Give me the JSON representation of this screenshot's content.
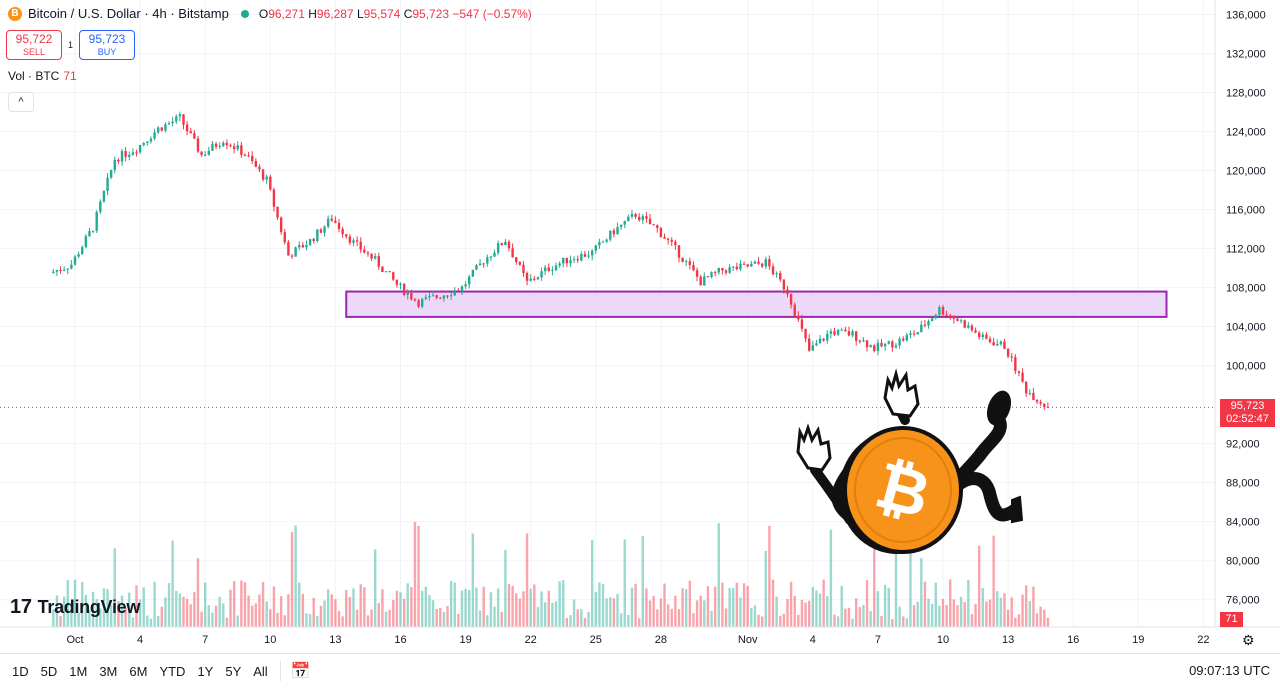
{
  "legend": {
    "coin_symbol": "B",
    "title": "Bitcoin / U.S. Dollar · 4h · Bitstamp",
    "o_label": "O",
    "o": "96,271",
    "h_label": "H",
    "h": "96,287",
    "l_label": "L",
    "l": "95,574",
    "c_label": "C",
    "c": "95,723",
    "change": "−547 (−0.57%)"
  },
  "trade": {
    "sell_price": "95,722",
    "sell_label": "SELL",
    "spread": "1",
    "buy_price": "95,723",
    "buy_label": "BUY"
  },
  "volume_legend": {
    "label": "Vol · BTC",
    "value": "71"
  },
  "collapse_glyph": "^",
  "logo": {
    "mark": "17",
    "text": "TradingView"
  },
  "last_price": {
    "price": "95,723",
    "countdown": "02:52:47"
  },
  "volume_tag": "71",
  "bottom_bar": {
    "ranges": [
      "1D",
      "5D",
      "1M",
      "3M",
      "6M",
      "YTD",
      "1Y",
      "5Y",
      "All"
    ],
    "time": "09:07:13 UTC"
  },
  "colors": {
    "up": "#22ab94",
    "down": "#f23645",
    "zone_fill": "#e5ccf7",
    "zone_border": "#9c27b0",
    "grid": "#f0f3fa"
  },
  "icons": [
    "bitcoin-icon",
    "collapse-icon",
    "calendar-range-icon",
    "settings-icon",
    "flag-icon",
    "lightning-icon"
  ],
  "chart_data": {
    "type": "candlestick",
    "timeframe": "4h",
    "y_ticks": [
      136000,
      132000,
      128000,
      124000,
      120000,
      116000,
      112000,
      108000,
      104000,
      100000,
      92000,
      88000,
      84000,
      80000,
      76000
    ],
    "y_tick_labels": [
      "136,000",
      "132,000",
      "128,000",
      "124,000",
      "120,000",
      "116,000",
      "112,000",
      "108,000",
      "104,000",
      "100,000",
      "92,000",
      "88,000",
      "84,000",
      "80,000",
      "76,000"
    ],
    "ylim": [
      73200,
      137500
    ],
    "x_ticks": [
      "Oct",
      "4",
      "7",
      "10",
      "13",
      "16",
      "19",
      "22",
      "25",
      "28",
      "Nov",
      "4",
      "7",
      "10",
      "13",
      "16",
      "19",
      "22"
    ],
    "close_path": [
      {
        "t": "Sep 30",
        "v": 109500
      },
      {
        "t": "Oct 1",
        "v": 110400
      },
      {
        "t": "Oct 2",
        "v": 114200
      },
      {
        "t": "Oct 3",
        "v": 121200
      },
      {
        "t": "Oct 4",
        "v": 122300
      },
      {
        "t": "Oct 5",
        "v": 124300
      },
      {
        "t": "Oct 6",
        "v": 125400
      },
      {
        "t": "Oct 7",
        "v": 121600
      },
      {
        "t": "Oct 8",
        "v": 123200
      },
      {
        "t": "Oct 9",
        "v": 121700
      },
      {
        "t": "Oct 10",
        "v": 119000
      },
      {
        "t": "Oct 11",
        "v": 111300
      },
      {
        "t": "Oct 12",
        "v": 112800
      },
      {
        "t": "Oct 13",
        "v": 115100
      },
      {
        "t": "Oct 14",
        "v": 112600
      },
      {
        "t": "Oct 15",
        "v": 110800
      },
      {
        "t": "Oct 16",
        "v": 108300
      },
      {
        "t": "Oct 17",
        "v": 106500
      },
      {
        "t": "Oct 18",
        "v": 107200
      },
      {
        "t": "Oct 19",
        "v": 108000
      },
      {
        "t": "Oct 20",
        "v": 110800
      },
      {
        "t": "Oct 21",
        "v": 112900
      },
      {
        "t": "Oct 22",
        "v": 108500
      },
      {
        "t": "Oct 23",
        "v": 110000
      },
      {
        "t": "Oct 24",
        "v": 111000
      },
      {
        "t": "Oct 25",
        "v": 111600
      },
      {
        "t": "Oct 26",
        "v": 113800
      },
      {
        "t": "Oct 27",
        "v": 115500
      },
      {
        "t": "Oct 28",
        "v": 114000
      },
      {
        "t": "Oct 29",
        "v": 111500
      },
      {
        "t": "Oct 30",
        "v": 108600
      },
      {
        "t": "Oct 31",
        "v": 109800
      },
      {
        "t": "Nov 1",
        "v": 110100
      },
      {
        "t": "Nov 2",
        "v": 110600
      },
      {
        "t": "Nov 3",
        "v": 107600
      },
      {
        "t": "Nov 4",
        "v": 101500
      },
      {
        "t": "Nov 5",
        "v": 103500
      },
      {
        "t": "Nov 6",
        "v": 103200
      },
      {
        "t": "Nov 7",
        "v": 101800
      },
      {
        "t": "Nov 8",
        "v": 102400
      },
      {
        "t": "Nov 9",
        "v": 103500
      },
      {
        "t": "Nov 10",
        "v": 105800
      },
      {
        "t": "Nov 11",
        "v": 104500
      },
      {
        "t": "Nov 12",
        "v": 102800
      },
      {
        "t": "Nov 13",
        "v": 102000
      },
      {
        "t": "Nov 14",
        "v": 97500
      },
      {
        "t": "Nov 15",
        "v": 95723
      }
    ],
    "zone": {
      "from": "Oct 14",
      "to": "Nov 20",
      "low": 105000,
      "high": 107600
    },
    "last_price": 95723,
    "volume_last": 71,
    "grid": true
  }
}
